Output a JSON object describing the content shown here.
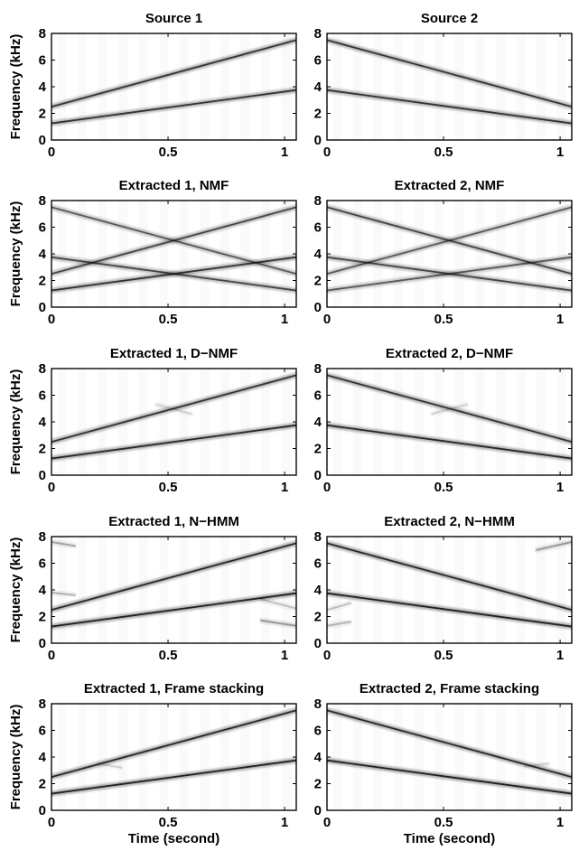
{
  "chart_data": [
    {
      "type": "heatmap",
      "title": "Source 1",
      "ylabel": "Frequency (kHz)",
      "xlabel": "",
      "xlim": [
        0,
        1.05
      ],
      "ylim": [
        0,
        8
      ],
      "x_ticks": [
        "0",
        "0.5",
        "1"
      ],
      "y_ticks": [
        "0",
        "2",
        "4",
        "6",
        "8"
      ],
      "series": [
        {
          "x": [
            0,
            1.05
          ],
          "y": [
            2.5,
            7.5
          ],
          "intensity": 0.8
        },
        {
          "x": [
            0,
            1.05
          ],
          "y": [
            1.25,
            3.75
          ],
          "intensity": 0.8
        }
      ]
    },
    {
      "type": "heatmap",
      "title": "Source 2",
      "ylabel": "",
      "xlabel": "",
      "xlim": [
        0,
        1.05
      ],
      "ylim": [
        0,
        8
      ],
      "x_ticks": [
        "0",
        "0.5",
        "1"
      ],
      "y_ticks": [
        "0",
        "2",
        "4",
        "6",
        "8"
      ],
      "series": [
        {
          "x": [
            0,
            1.05
          ],
          "y": [
            7.5,
            2.5
          ],
          "intensity": 0.8
        },
        {
          "x": [
            0,
            1.05
          ],
          "y": [
            3.75,
            1.25
          ],
          "intensity": 0.8
        }
      ]
    },
    {
      "type": "heatmap",
      "title": "Extracted 1, NMF",
      "ylabel": "Frequency (kHz)",
      "xlabel": "",
      "xlim": [
        0,
        1.05
      ],
      "ylim": [
        0,
        8
      ],
      "x_ticks": [
        "0",
        "0.5",
        "1"
      ],
      "y_ticks": [
        "0",
        "2",
        "4",
        "6",
        "8"
      ],
      "series": [
        {
          "x": [
            0,
            1.05
          ],
          "y": [
            2.5,
            7.5
          ],
          "intensity": 0.7
        },
        {
          "x": [
            0,
            1.05
          ],
          "y": [
            1.25,
            3.75
          ],
          "intensity": 0.8
        },
        {
          "x": [
            0,
            1.05
          ],
          "y": [
            7.5,
            2.5
          ],
          "intensity": 0.6
        },
        {
          "x": [
            0,
            1.05
          ],
          "y": [
            3.75,
            1.25
          ],
          "intensity": 0.7
        }
      ]
    },
    {
      "type": "heatmap",
      "title": "Extracted 2, NMF",
      "ylabel": "",
      "xlabel": "",
      "xlim": [
        0,
        1.05
      ],
      "ylim": [
        0,
        8
      ],
      "x_ticks": [
        "0",
        "0.5",
        "1"
      ],
      "y_ticks": [
        "0",
        "2",
        "4",
        "6",
        "8"
      ],
      "series": [
        {
          "x": [
            0,
            1.05
          ],
          "y": [
            2.5,
            7.5
          ],
          "intensity": 0.6
        },
        {
          "x": [
            0,
            1.05
          ],
          "y": [
            1.25,
            3.75
          ],
          "intensity": 0.6
        },
        {
          "x": [
            0,
            1.05
          ],
          "y": [
            7.5,
            2.5
          ],
          "intensity": 0.7
        },
        {
          "x": [
            0,
            1.05
          ],
          "y": [
            3.75,
            1.25
          ],
          "intensity": 0.7
        }
      ]
    },
    {
      "type": "heatmap",
      "title": "Extracted 1, D−NMF",
      "ylabel": "Frequency (kHz)",
      "xlabel": "",
      "xlim": [
        0,
        1.05
      ],
      "ylim": [
        0,
        8
      ],
      "x_ticks": [
        "0",
        "0.5",
        "1"
      ],
      "y_ticks": [
        "0",
        "2",
        "4",
        "6",
        "8"
      ],
      "series": [
        {
          "x": [
            0,
            1.05
          ],
          "y": [
            2.5,
            7.5
          ],
          "intensity": 0.8
        },
        {
          "x": [
            0,
            1.05
          ],
          "y": [
            1.25,
            3.75
          ],
          "intensity": 0.85
        },
        {
          "x": [
            0.45,
            0.6
          ],
          "y": [
            5.3,
            4.6
          ],
          "intensity": 0.15
        }
      ]
    },
    {
      "type": "heatmap",
      "title": "Extracted 2, D−NMF",
      "ylabel": "",
      "xlabel": "",
      "xlim": [
        0,
        1.05
      ],
      "ylim": [
        0,
        8
      ],
      "x_ticks": [
        "0",
        "0.5",
        "1"
      ],
      "y_ticks": [
        "0",
        "2",
        "4",
        "6",
        "8"
      ],
      "series": [
        {
          "x": [
            0,
            1.05
          ],
          "y": [
            7.5,
            2.5
          ],
          "intensity": 0.8
        },
        {
          "x": [
            0,
            1.05
          ],
          "y": [
            3.75,
            1.25
          ],
          "intensity": 0.85
        },
        {
          "x": [
            0.45,
            0.6
          ],
          "y": [
            4.6,
            5.3
          ],
          "intensity": 0.15
        }
      ]
    },
    {
      "type": "heatmap",
      "title": "Extracted 1, N−HMM",
      "ylabel": "Frequency (kHz)",
      "xlabel": "",
      "xlim": [
        0,
        1.05
      ],
      "ylim": [
        0,
        8
      ],
      "x_ticks": [
        "0",
        "0.5",
        "1"
      ],
      "y_ticks": [
        "0",
        "2",
        "4",
        "6",
        "8"
      ],
      "series": [
        {
          "x": [
            0,
            1.05
          ],
          "y": [
            2.5,
            7.5
          ],
          "intensity": 0.85
        },
        {
          "x": [
            0,
            1.05
          ],
          "y": [
            1.25,
            3.75
          ],
          "intensity": 0.9
        },
        {
          "x": [
            0,
            0.1
          ],
          "y": [
            7.6,
            7.3
          ],
          "intensity": 0.3
        },
        {
          "x": [
            0,
            0.1
          ],
          "y": [
            3.8,
            3.6
          ],
          "intensity": 0.25
        },
        {
          "x": [
            0.9,
            1.05
          ],
          "y": [
            1.7,
            1.3
          ],
          "intensity": 0.35
        },
        {
          "x": [
            0.9,
            1.05
          ],
          "y": [
            3.3,
            2.6
          ],
          "intensity": 0.2
        }
      ]
    },
    {
      "type": "heatmap",
      "title": "Extracted 2, N−HMM",
      "ylabel": "",
      "xlabel": "",
      "xlim": [
        0,
        1.05
      ],
      "ylim": [
        0,
        8
      ],
      "x_ticks": [
        "0",
        "0.5",
        "1"
      ],
      "y_ticks": [
        "0",
        "2",
        "4",
        "6",
        "8"
      ],
      "series": [
        {
          "x": [
            0,
            1.05
          ],
          "y": [
            7.5,
            2.5
          ],
          "intensity": 0.85
        },
        {
          "x": [
            0,
            1.05
          ],
          "y": [
            3.75,
            1.25
          ],
          "intensity": 0.9
        },
        {
          "x": [
            0.9,
            1.05
          ],
          "y": [
            7.0,
            7.6
          ],
          "intensity": 0.35
        },
        {
          "x": [
            0,
            0.1
          ],
          "y": [
            1.3,
            1.6
          ],
          "intensity": 0.25
        },
        {
          "x": [
            0,
            0.1
          ],
          "y": [
            2.5,
            3.0
          ],
          "intensity": 0.2
        }
      ]
    },
    {
      "type": "heatmap",
      "title": "Extracted 1, Frame stacking",
      "ylabel": "Frequency (kHz)",
      "xlabel": "Time (second)",
      "xlim": [
        0,
        1.05
      ],
      "ylim": [
        0,
        8
      ],
      "x_ticks": [
        "0",
        "0.5",
        "1"
      ],
      "y_ticks": [
        "0",
        "2",
        "4",
        "6",
        "8"
      ],
      "series": [
        {
          "x": [
            0,
            1.05
          ],
          "y": [
            2.5,
            7.5
          ],
          "intensity": 0.85
        },
        {
          "x": [
            0,
            1.05
          ],
          "y": [
            1.25,
            3.75
          ],
          "intensity": 0.9
        },
        {
          "x": [
            0.2,
            0.3
          ],
          "y": [
            3.5,
            3.2
          ],
          "intensity": 0.15
        }
      ]
    },
    {
      "type": "heatmap",
      "title": "Extracted 2, Frame stacking",
      "ylabel": "",
      "xlabel": "Time (second)",
      "xlim": [
        0,
        1.05
      ],
      "ylim": [
        0,
        8
      ],
      "x_ticks": [
        "0",
        "0.5",
        "1"
      ],
      "y_ticks": [
        "0",
        "2",
        "4",
        "6",
        "8"
      ],
      "series": [
        {
          "x": [
            0,
            1.05
          ],
          "y": [
            7.5,
            2.5
          ],
          "intensity": 0.85
        },
        {
          "x": [
            0,
            1.05
          ],
          "y": [
            3.75,
            1.25
          ],
          "intensity": 0.9
        },
        {
          "x": [
            0.85,
            0.95
          ],
          "y": [
            3.3,
            3.5
          ],
          "intensity": 0.15
        }
      ]
    }
  ]
}
